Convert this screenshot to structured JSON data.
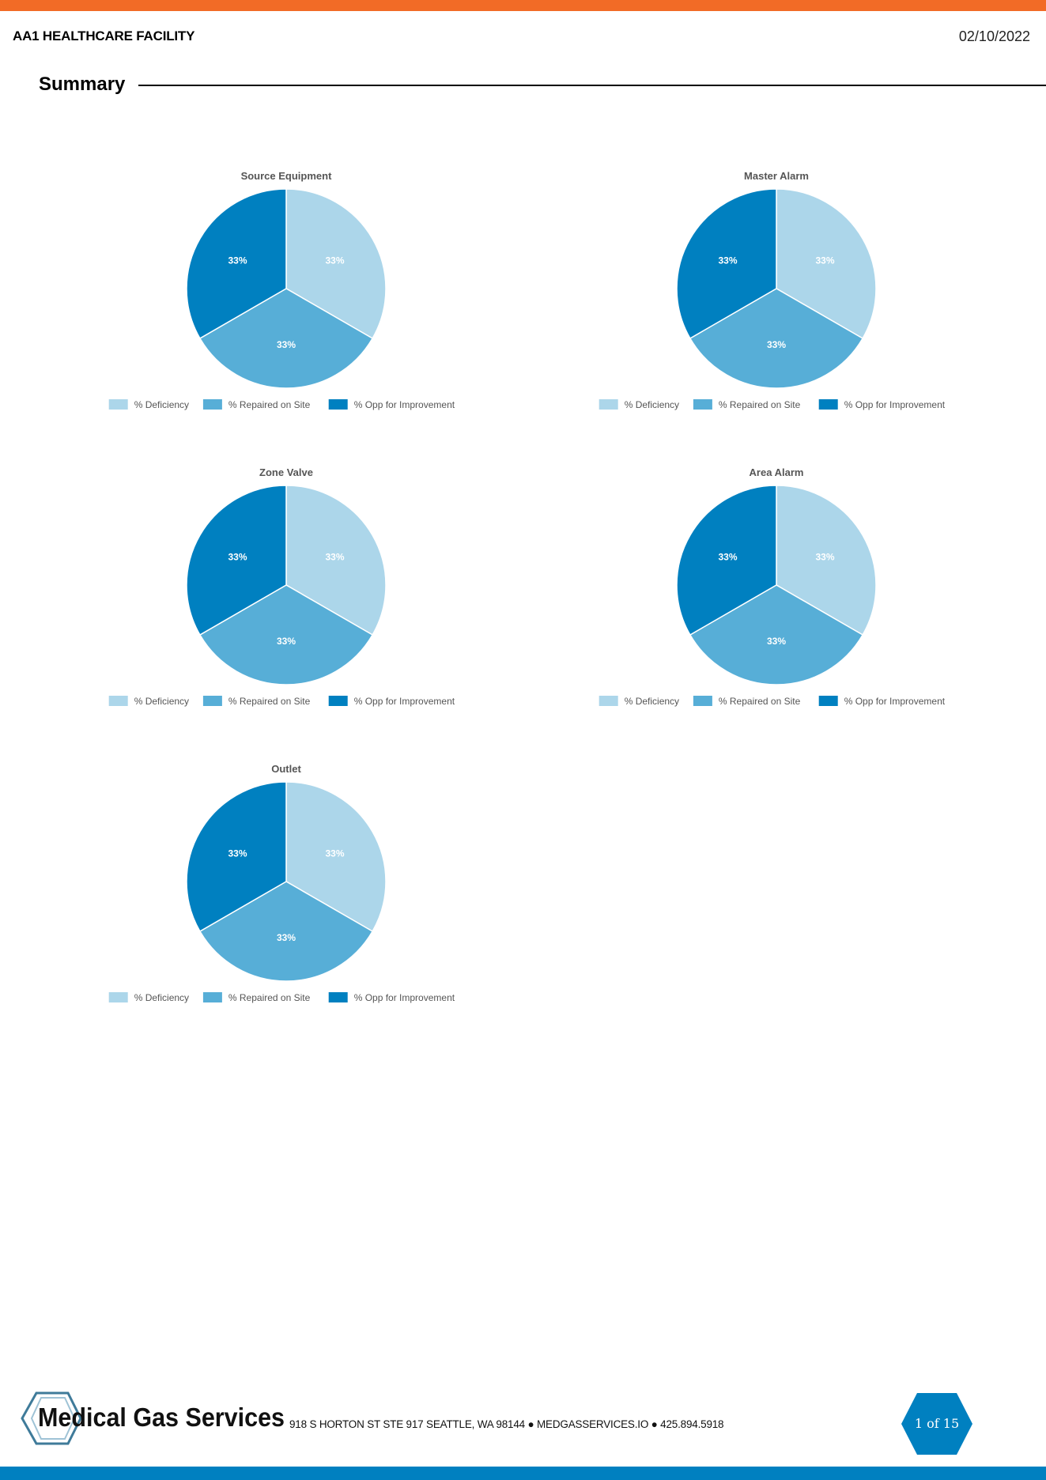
{
  "header": {
    "facility": "AA1 HEALTHCARE FACILITY",
    "date": "02/10/2022",
    "accent_color": "#f26b26"
  },
  "section": {
    "title": "Summary"
  },
  "legend": [
    {
      "label": "% Deficiency",
      "color": "#acd6ea"
    },
    {
      "label": "% Repaired on Site",
      "color": "#57aed7"
    },
    {
      "label": "% Opp for Improvement",
      "color": "#0080c0"
    }
  ],
  "chart_data": [
    {
      "type": "pie",
      "title": "Source Equipment",
      "categories": [
        "% Deficiency",
        "% Repaired on Site",
        "% Opp for Improvement"
      ],
      "values": [
        33.33,
        33.33,
        33.33
      ],
      "labels": [
        "33%",
        "33%",
        "33%"
      ],
      "legend_position": "bottom"
    },
    {
      "type": "pie",
      "title": "Master Alarm",
      "categories": [
        "% Deficiency",
        "% Repaired on Site",
        "% Opp for Improvement"
      ],
      "values": [
        33.33,
        33.33,
        33.33
      ],
      "labels": [
        "33%",
        "33%",
        "33%"
      ],
      "legend_position": "bottom"
    },
    {
      "type": "pie",
      "title": "Zone Valve",
      "categories": [
        "% Deficiency",
        "% Repaired on Site",
        "% Opp for Improvement"
      ],
      "values": [
        33.33,
        33.33,
        33.33
      ],
      "labels": [
        "33%",
        "33%",
        "33%"
      ],
      "legend_position": "bottom"
    },
    {
      "type": "pie",
      "title": "Area Alarm",
      "categories": [
        "% Deficiency",
        "% Repaired on Site",
        "% Opp for Improvement"
      ],
      "values": [
        33.33,
        33.33,
        33.33
      ],
      "labels": [
        "33%",
        "33%",
        "33%"
      ],
      "legend_position": "bottom"
    },
    {
      "type": "pie",
      "title": "Outlet",
      "categories": [
        "% Deficiency",
        "% Repaired on Site",
        "% Opp for Improvement"
      ],
      "values": [
        33.33,
        33.33,
        33.33
      ],
      "labels": [
        "33%",
        "33%",
        "33%"
      ],
      "legend_position": "bottom"
    }
  ],
  "footer": {
    "logo_text": "Medical Gas Services",
    "address": "918 S HORTON ST STE 917 SEATTLE, WA 98144 ● MEDGASSERVICES.IO ● 425.894.5918",
    "page": "1 of 15",
    "brand_color": "#0080c0"
  }
}
